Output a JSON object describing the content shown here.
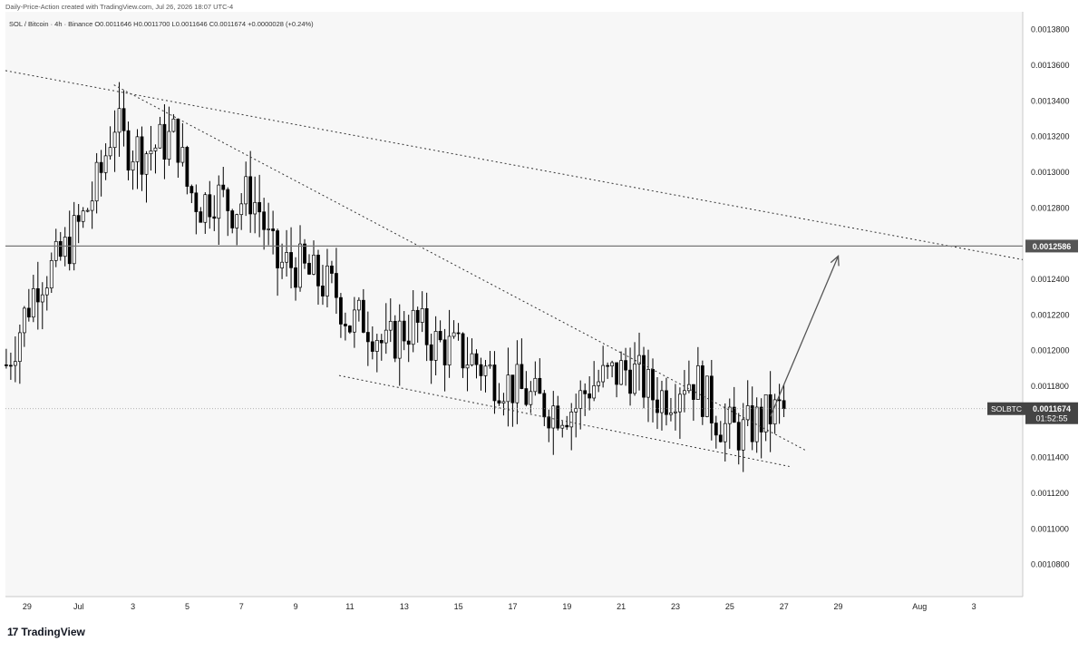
{
  "header": "Daily-Price-Action created with TradingView.com, Jul 26, 2026 18:07 UTC-4",
  "symbol_bar": "SOL / Bitcoin · 4h · Binance  O0.0011646  H0.0011700  L0.0011646  C0.0011674  +0.0000028 (+0.24%)",
  "footer": {
    "logo_mark": "17",
    "logo_text": "TradingView"
  },
  "colors": {
    "up": "#ffffff",
    "down": "#000000",
    "wick": "#000000",
    "bg": "#f7f7f7",
    "hline": "#777777",
    "trend": "#333333"
  },
  "chart_data": {
    "type": "candlestick",
    "symbol": "SOL / Bitcoin",
    "timeframe": "4h",
    "exchange": "Binance",
    "ohlc": {
      "open": 0.0011646,
      "high": 0.00117,
      "low": 0.0011646,
      "close": 0.0011674,
      "change": "+0.0000028 (+0.24%)"
    },
    "y_ticks": [
      "0.0013800",
      "0.0013600",
      "0.0013400",
      "0.0013200",
      "0.0013000",
      "0.0012800",
      "0.0012400",
      "0.0012200",
      "0.0012000",
      "0.0011800",
      "0.0011400",
      "0.0011200",
      "0.0011000",
      "0.0010800"
    ],
    "y_tick_values": [
      0.00138,
      0.00136,
      0.00134,
      0.00132,
      0.0013,
      0.00128,
      0.00124,
      0.00122,
      0.0012,
      0.00118,
      0.00114,
      0.00112,
      0.0011,
      0.00108
    ],
    "ylim": [
      0.001062,
      0.00139
    ],
    "x_ticks": [
      {
        "label": "29",
        "t": -1.9
      },
      {
        "label": "Jul",
        "t": 0
      },
      {
        "label": "3",
        "t": 2
      },
      {
        "label": "5",
        "t": 4
      },
      {
        "label": "7",
        "t": 6
      },
      {
        "label": "9",
        "t": 8
      },
      {
        "label": "11",
        "t": 10
      },
      {
        "label": "13",
        "t": 12
      },
      {
        "label": "15",
        "t": 14
      },
      {
        "label": "17",
        "t": 16
      },
      {
        "label": "19",
        "t": 18
      },
      {
        "label": "21",
        "t": 20
      },
      {
        "label": "23",
        "t": 22
      },
      {
        "label": "25",
        "t": 24
      },
      {
        "label": "27",
        "t": 26
      },
      {
        "label": "29",
        "t": 28
      },
      {
        "label": "Aug",
        "t": 31
      },
      {
        "label": "3",
        "t": 33
      }
    ],
    "xlim": [
      -2.7,
      34.8
    ],
    "horizontal_level": {
      "price": 0.0012586,
      "label": "0.0012586"
    },
    "current_price": {
      "symbol": "SOLBTC",
      "price": "0.0011674",
      "countdown": "01:52:55",
      "value": 0.0011674
    },
    "trendlines": [
      {
        "style": "dotted",
        "points": [
          [
            -2.7,
            0.001357
          ],
          [
            34.8,
            0.001251
          ]
        ]
      },
      {
        "style": "dotted",
        "points": [
          [
            1.3,
            0.001349
          ],
          [
            26.8,
            0.001144
          ]
        ]
      },
      {
        "style": "dotted",
        "points": [
          [
            9.6,
            0.001186
          ],
          [
            26.2,
            0.001135
          ]
        ]
      }
    ],
    "projection_arrow": {
      "from": [
        25.5,
        0.001163
      ],
      "to": [
        28.0,
        0.001253
      ]
    },
    "anchors": [
      {
        "t": -2.67,
        "p": 0.001192
      },
      {
        "t": -1.5,
        "p": 0.00124
      },
      {
        "t": -0.8,
        "p": 0.001248
      },
      {
        "t": 0.2,
        "p": 0.001275
      },
      {
        "t": 0.8,
        "p": 0.001298
      },
      {
        "t": 1.3,
        "p": 0.00133
      },
      {
        "t": 1.7,
        "p": 0.001315
      },
      {
        "t": 2.5,
        "p": 0.001312
      },
      {
        "t": 3.3,
        "p": 0.001318
      },
      {
        "t": 3.6,
        "p": 0.001322
      },
      {
        "t": 4.0,
        "p": 0.001292
      },
      {
        "t": 4.5,
        "p": 0.001282
      },
      {
        "t": 5.0,
        "p": 0.001288
      },
      {
        "t": 5.7,
        "p": 0.00128
      },
      {
        "t": 6.3,
        "p": 0.001288
      },
      {
        "t": 6.7,
        "p": 0.001278
      },
      {
        "t": 7.0,
        "p": 0.00126
      },
      {
        "t": 7.3,
        "p": 0.001248
      },
      {
        "t": 8.0,
        "p": 0.001248
      },
      {
        "t": 8.5,
        "p": 0.001242
      },
      {
        "t": 9.0,
        "p": 0.001238
      },
      {
        "t": 9.5,
        "p": 0.001232
      },
      {
        "t": 10.0,
        "p": 0.001215
      },
      {
        "t": 10.5,
        "p": 0.001218
      },
      {
        "t": 11.0,
        "p": 0.00121
      },
      {
        "t": 11.3,
        "p": 0.0012
      },
      {
        "t": 11.8,
        "p": 0.00121
      },
      {
        "t": 12.4,
        "p": 0.001215
      },
      {
        "t": 13.0,
        "p": 0.001205
      },
      {
        "t": 13.8,
        "p": 0.0012
      },
      {
        "t": 14.5,
        "p": 0.001195
      },
      {
        "t": 15.2,
        "p": 0.001187
      },
      {
        "t": 16.0,
        "p": 0.00118
      },
      {
        "t": 16.8,
        "p": 0.001172
      },
      {
        "t": 17.5,
        "p": 0.001168
      },
      {
        "t": 18.3,
        "p": 0.001168
      },
      {
        "t": 18.8,
        "p": 0.00118
      },
      {
        "t": 19.5,
        "p": 0.001185
      },
      {
        "t": 20.3,
        "p": 0.00119
      },
      {
        "t": 20.8,
        "p": 0.001182
      },
      {
        "t": 21.2,
        "p": 0.001174
      },
      {
        "t": 21.8,
        "p": 0.001176
      },
      {
        "t": 22.3,
        "p": 0.001185
      },
      {
        "t": 22.8,
        "p": 0.001182
      },
      {
        "t": 23.4,
        "p": 0.001165
      },
      {
        "t": 23.9,
        "p": 0.001156
      },
      {
        "t": 24.5,
        "p": 0.001154
      },
      {
        "t": 25.0,
        "p": 0.00116
      },
      {
        "t": 25.5,
        "p": 0.001164
      },
      {
        "t": 26.0,
        "p": 0.0011674
      }
    ]
  }
}
